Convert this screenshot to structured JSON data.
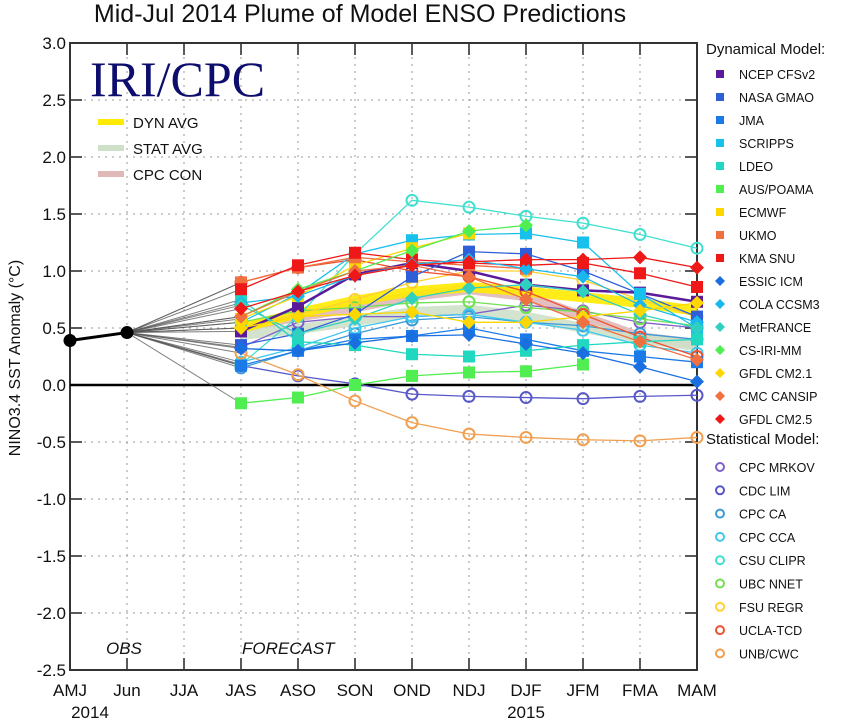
{
  "chart_data": {
    "type": "line",
    "title": "Mid-Jul 2014 Plume of Model ENSO Predictions",
    "brand": "IRI/CPC",
    "xlabel": "",
    "ylabel": "NINO3.4 SST Anomaly (°C)",
    "ylim": [
      -2.5,
      3.0
    ],
    "yticks": [
      "3.0",
      "2.5",
      "2.0",
      "1.5",
      "1.0",
      "0.5",
      "0.0",
      "-0.5",
      "-1.0",
      "-1.5",
      "-2.0",
      "-2.5"
    ],
    "ytick_values": [
      3.0,
      2.5,
      2.0,
      1.5,
      1.0,
      0.5,
      0.0,
      -0.5,
      -1.0,
      -1.5,
      -2.0,
      -2.5
    ],
    "categories": [
      "AMJ",
      "Jun",
      "JJA",
      "JAS",
      "ASO",
      "SON",
      "OND",
      "NDJ",
      "DJF",
      "JFM",
      "FMA",
      "MAM"
    ],
    "year_labels": [
      {
        "label": "2014",
        "at": "AMJ"
      },
      {
        "label": "2015",
        "at": "DJF"
      }
    ],
    "grid": true,
    "annotations": {
      "obs": "OBS",
      "forecast": "FORECAST"
    },
    "observed": {
      "name": "OBS",
      "x": [
        "AMJ",
        "Jun"
      ],
      "values": [
        0.39,
        0.46
      ],
      "color": "#000000"
    },
    "forecast_x": [
      "JAS",
      "ASO",
      "SON",
      "OND",
      "NDJ",
      "DJF",
      "JFM",
      "FMA",
      "MAM"
    ],
    "averages": [
      {
        "name": "DYN AVG",
        "color": "#ffea00",
        "values": [
          0.5,
          0.63,
          0.74,
          0.82,
          0.86,
          0.82,
          0.77,
          0.72,
          0.65
        ]
      },
      {
        "name": "STAT AVG",
        "color": "#cfe0c8",
        "values": [
          0.44,
          0.49,
          0.56,
          0.64,
          0.66,
          0.6,
          0.5,
          0.41,
          0.34
        ]
      },
      {
        "name": "CPC CON",
        "color": "#e0b8b8",
        "values": [
          0.5,
          0.6,
          0.68,
          0.78,
          0.84,
          0.78,
          0.6,
          0.42,
          0.36
        ]
      }
    ],
    "legend_dynamical_title": "Dynamical Model:",
    "legend_statistical_title": "Statistical Model:",
    "dynamical": [
      {
        "name": "NCEP CFSv2",
        "color": "#5a1a9a",
        "marker": "square",
        "values": [
          0.47,
          0.69,
          0.97,
          1.07,
          1.0,
          0.88,
          0.83,
          0.81,
          0.73
        ]
      },
      {
        "name": "NASA GMAO",
        "color": "#2f5fd8",
        "marker": "square",
        "values": [
          0.35,
          0.45,
          0.62,
          0.95,
          1.17,
          1.15,
          1.0,
          0.8,
          0.6
        ]
      },
      {
        "name": "JMA",
        "color": "#1a7be8",
        "marker": "square",
        "values": [
          0.17,
          0.3,
          0.4,
          0.43,
          0.5,
          0.4,
          0.3,
          0.25,
          0.2
        ]
      },
      {
        "name": "SCRIPPS",
        "color": "#18c0ee",
        "marker": "square",
        "values": [
          0.55,
          0.8,
          1.15,
          1.27,
          1.32,
          1.33,
          1.25,
          0.8,
          0.5
        ]
      },
      {
        "name": "LDEO",
        "color": "#20d8c0",
        "marker": "square",
        "values": [
          0.75,
          0.38,
          0.35,
          0.27,
          0.25,
          0.3,
          0.35,
          0.38,
          0.4
        ]
      },
      {
        "name": "AUS/POAMA",
        "color": "#50ee50",
        "marker": "square",
        "values": [
          -0.16,
          -0.11,
          0.0,
          0.08,
          0.11,
          0.12,
          0.18,
          null,
          null
        ]
      },
      {
        "name": "ECMWF",
        "color": "#ffd700",
        "marker": "square",
        "values": [
          0.58,
          0.78,
          1.05,
          1.2,
          1.33,
          null,
          null,
          null,
          null
        ]
      },
      {
        "name": "UKMO",
        "color": "#f07040",
        "marker": "square",
        "values": [
          0.9,
          1.03,
          1.12,
          1.08,
          1.05,
          1.02,
          null,
          null,
          null
        ]
      },
      {
        "name": "KMA SNU",
        "color": "#ee1818",
        "marker": "square",
        "values": [
          0.84,
          1.05,
          1.16,
          1.1,
          1.07,
          1.05,
          1.07,
          0.98,
          0.86
        ]
      },
      {
        "name": "ESSIC ICM",
        "color": "#1a6fe0",
        "marker": "diamond",
        "values": [
          0.32,
          0.3,
          0.37,
          0.43,
          0.44,
          0.36,
          0.28,
          0.16,
          0.03
        ]
      },
      {
        "name": "COLA CCSM3",
        "color": "#18b8ee",
        "marker": "diamond",
        "values": [
          0.72,
          0.78,
          0.96,
          1.06,
          1.1,
          1.02,
          0.95,
          0.7,
          0.55
        ]
      },
      {
        "name": "MetFRANCE",
        "color": "#30d0c0",
        "marker": "diamond",
        "values": [
          0.7,
          0.45,
          0.58,
          0.76,
          0.85,
          0.88,
          0.82,
          0.62,
          0.5
        ]
      },
      {
        "name": "CS-IRI-MM",
        "color": "#50ee50",
        "marker": "diamond",
        "values": [
          0.6,
          0.84,
          1.0,
          1.18,
          1.35,
          1.4,
          null,
          null,
          null
        ]
      },
      {
        "name": "GFDL CM2.1",
        "color": "#ffd700",
        "marker": "diamond",
        "values": [
          0.5,
          0.6,
          0.62,
          0.64,
          0.55,
          0.55,
          0.6,
          0.65,
          0.72
        ]
      },
      {
        "name": "CMC CANSIP",
        "color": "#f07040",
        "marker": "diamond",
        "values": [
          0.6,
          0.82,
          1.0,
          1.05,
          0.95,
          0.75,
          0.55,
          0.38,
          0.22
        ]
      },
      {
        "name": "GFDL CM2.5",
        "color": "#ee1818",
        "marker": "diamond",
        "values": [
          0.67,
          0.82,
          0.96,
          1.05,
          1.08,
          1.1,
          1.1,
          1.12,
          1.03
        ]
      }
    ],
    "statistical": [
      {
        "name": "CPC MRKOV",
        "color": "#8060c8",
        "marker": "circle",
        "values": [
          0.33,
          0.55,
          0.6,
          0.6,
          0.62,
          0.7,
          0.65,
          0.55,
          0.5
        ]
      },
      {
        "name": "CDC LIM",
        "color": "#5858c8",
        "marker": "circle",
        "values": [
          0.17,
          0.08,
          0.01,
          -0.08,
          -0.1,
          -0.11,
          -0.12,
          -0.1,
          -0.09
        ]
      },
      {
        "name": "CPC CA",
        "color": "#3a9ad8",
        "marker": "circle",
        "values": [
          0.15,
          0.3,
          0.45,
          0.57,
          0.6,
          0.55,
          0.52,
          0.45,
          0.4
        ]
      },
      {
        "name": "CPC CCA",
        "color": "#40c8ee",
        "marker": "circle",
        "values": [
          0.2,
          0.33,
          0.5,
          0.6,
          0.62,
          0.55,
          0.48,
          0.35,
          0.28
        ]
      },
      {
        "name": "CSU CLIPR",
        "color": "#40e0d0",
        "marker": "circle",
        "values": [
          0.18,
          0.6,
          1.15,
          1.62,
          1.56,
          1.48,
          1.42,
          1.32,
          1.2
        ]
      },
      {
        "name": "UBC NNET",
        "color": "#70e050",
        "marker": "circle",
        "values": [
          0.55,
          0.65,
          0.68,
          0.72,
          0.73,
          0.68,
          0.64,
          0.58,
          0.52
        ]
      },
      {
        "name": "FSU REGR",
        "color": "#ffd030",
        "marker": "circle",
        "values": [
          0.5,
          0.62,
          0.75,
          0.9,
          1.0,
          1.0,
          0.92,
          0.75,
          0.6
        ]
      },
      {
        "name": "UCLA-TCD",
        "color": "#ee5030",
        "marker": "circle",
        "values": [
          0.9,
          1.03,
          1.1,
          1.0,
          0.95,
          0.82,
          0.62,
          0.42,
          0.25
        ]
      },
      {
        "name": "UNB/CWC",
        "color": "#f0a050",
        "marker": "circle",
        "values": [
          0.28,
          0.09,
          -0.14,
          -0.33,
          -0.43,
          -0.46,
          -0.48,
          -0.49,
          -0.46
        ]
      }
    ]
  }
}
